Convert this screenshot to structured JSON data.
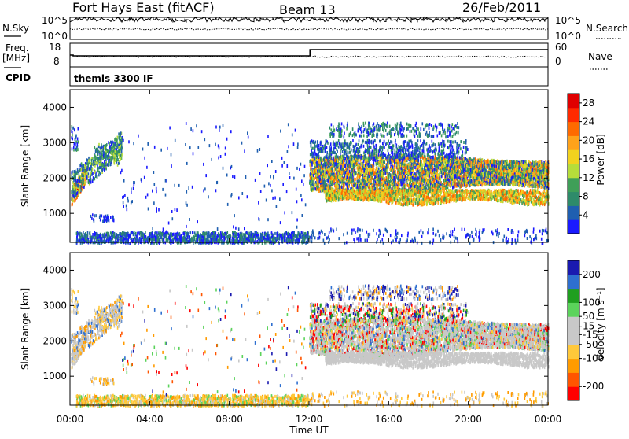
{
  "header": {
    "station": "Fort Hays East (fitACF)",
    "beam": "Beam 13",
    "date": "26/Feb/2011"
  },
  "strip": {
    "nsky_label": "N.Sky",
    "nsky_ticks": [
      "10^5",
      "10^0"
    ],
    "nsearch_label": "N.Search",
    "nsearch_ticks": [
      "10^5",
      "10^0"
    ],
    "freq_label": "Freq.",
    "freq_unit": "[MHz]",
    "freq_ticks": [
      "18",
      "8"
    ],
    "nave_label": "Nave",
    "nave_ticks": [
      "60",
      "0"
    ],
    "cpid_label": "CPID",
    "cpid_value": "themis 3300 IF"
  },
  "colors": {
    "power_scale": [
      "#1a1aff",
      "#1f5fb0",
      "#2e8b6a",
      "#3f9f58",
      "#b6dd3a",
      "#f2d21e",
      "#ffa21a",
      "#ff6a00",
      "#ff2a00",
      "#e00000"
    ],
    "velocity_scale": [
      "#ff0000",
      "#ff5500",
      "#ff9b00",
      "#ffc83a",
      "#c8c8c8",
      "#c8c8c8",
      "#5bd35b",
      "#1f9f1f",
      "#2e6fd0",
      "#1a1ab0"
    ]
  },
  "chart_data": [
    {
      "type": "heatmap",
      "title": "",
      "xlabel": "",
      "ylabel": "Slant Range [km]",
      "xticks": [
        "00:00",
        "04:00",
        "08:00",
        "12:00",
        "16:00",
        "20:00",
        "00:00"
      ],
      "xlim_hours": [
        0,
        24
      ],
      "ylim": [
        180,
        4500
      ],
      "yticks": [
        "1000",
        "2000",
        "3000",
        "4000"
      ],
      "colorbar": {
        "label": "Power [dB]",
        "ticks": [
          "4",
          "8",
          "12",
          "16",
          "20",
          "24",
          "28"
        ],
        "range": [
          0,
          30
        ]
      },
      "grid": false
    },
    {
      "type": "heatmap",
      "title": "",
      "xlabel": "Time UT",
      "ylabel": "Slant Range [km]",
      "xticks": [
        "00:00",
        "04:00",
        "08:00",
        "12:00",
        "16:00",
        "20:00",
        "00:00"
      ],
      "xlim_hours": [
        0,
        24
      ],
      "ylim": [
        180,
        4500
      ],
      "yticks": [
        "1000",
        "2000",
        "3000",
        "4000"
      ],
      "colorbar": {
        "label": "Velocity [m s⁻¹]",
        "ticks": [
          "200",
          "100",
          "50",
          "15",
          "-15",
          "-50",
          "-100",
          "-200"
        ],
        "range": [
          -250,
          250
        ]
      },
      "grid": false
    }
  ]
}
